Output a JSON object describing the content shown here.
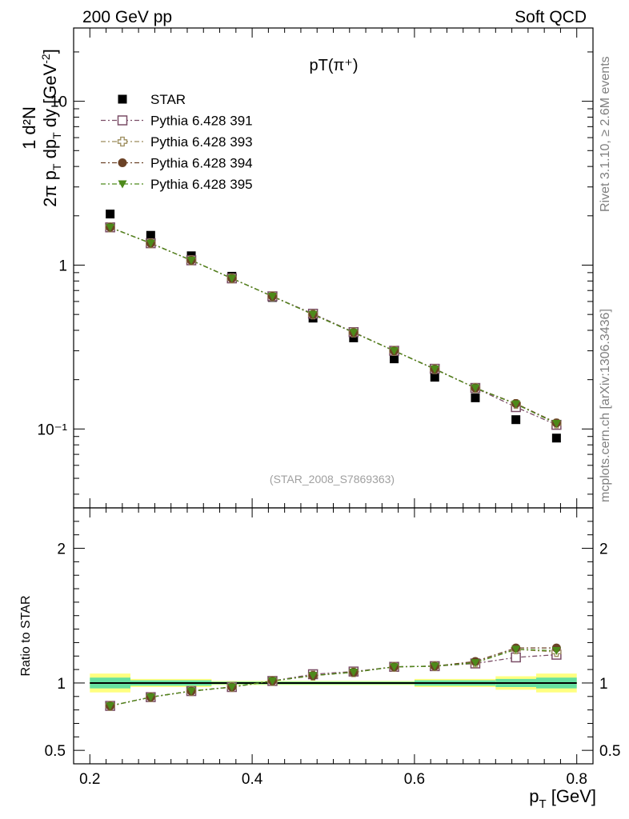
{
  "header": {
    "left": "200 GeV pp",
    "right": "Soft QCD"
  },
  "side_text": {
    "top": "Rivet 3.1.10, ≥ 2.6M events",
    "bottom": "mcplots.cern.ch [arXiv:1306.3436]"
  },
  "chart_data": [
    {
      "type": "scatter",
      "title": "pT(π⁺)",
      "annotation": "(STAR_2008_S7869363)",
      "xlabel": "p_T [GeV]",
      "ylabel": "1/(2π p_T) d²N/(dp_T dy) [GeV⁻²]",
      "yscale": "log",
      "xlim": [
        0.18,
        0.82
      ],
      "ylim": [
        0.033,
        28
      ],
      "y_tick_labels": [
        "10⁻¹",
        "1",
        "10"
      ],
      "legend_position": "top-left",
      "x": [
        0.225,
        0.275,
        0.325,
        0.375,
        0.425,
        0.475,
        0.525,
        0.575,
        0.625,
        0.675,
        0.725,
        0.775
      ],
      "series": [
        {
          "name": "STAR",
          "color": "#000000",
          "marker": "filled-square",
          "values": [
            2.05,
            1.52,
            1.14,
            0.855,
            0.635,
            0.475,
            0.36,
            0.268,
            0.207,
            0.155,
            0.114,
            0.088
          ]
        },
        {
          "name": "Pythia 6.428 391",
          "color": "#7a4d66",
          "marker": "open-square",
          "values": [
            1.7,
            1.36,
            1.07,
            0.83,
            0.645,
            0.505,
            0.39,
            0.3,
            0.233,
            0.178,
            0.136,
            0.106
          ]
        },
        {
          "name": "Pythia 6.428 393",
          "color": "#9c8c5c",
          "marker": "open-cross",
          "values": [
            1.7,
            1.36,
            1.07,
            0.83,
            0.645,
            0.5,
            0.388,
            0.3,
            0.232,
            0.178,
            0.142,
            0.108
          ]
        },
        {
          "name": "Pythia 6.428 394",
          "color": "#6b4226",
          "marker": "filled-circle",
          "values": [
            1.7,
            1.36,
            1.07,
            0.83,
            0.645,
            0.5,
            0.388,
            0.3,
            0.232,
            0.178,
            0.143,
            0.109
          ]
        },
        {
          "name": "Pythia 6.428 395",
          "color": "#4d8a1a",
          "marker": "filled-triangle-down",
          "values": [
            1.7,
            1.36,
            1.07,
            0.83,
            0.645,
            0.5,
            0.388,
            0.3,
            0.232,
            0.178,
            0.142,
            0.108
          ]
        }
      ]
    },
    {
      "type": "scatter",
      "ylabel": "Ratio to STAR",
      "xlabel": "p_T [GeV]",
      "xlim": [
        0.18,
        0.82
      ],
      "ylim": [
        0.4,
        2.3
      ],
      "y_ticks": [
        0.5,
        1,
        2
      ],
      "x_ticks": [
        0.2,
        0.4,
        0.6,
        0.8
      ],
      "reference_line": 1,
      "x": [
        0.225,
        0.275,
        0.325,
        0.375,
        0.425,
        0.475,
        0.525,
        0.575,
        0.625,
        0.675,
        0.725,
        0.775
      ],
      "uncertainty_bands": [
        {
          "x_range": [
            0.2,
            0.25
          ],
          "inner": [
            0.96,
            1.04
          ],
          "outer": [
            0.93,
            1.07
          ]
        },
        {
          "x_range": [
            0.25,
            0.35
          ],
          "inner": [
            0.98,
            1.02
          ],
          "outer": [
            0.97,
            1.03
          ]
        },
        {
          "x_range": [
            0.35,
            0.6
          ],
          "inner": [
            0.99,
            1.01
          ],
          "outer": [
            0.985,
            1.015
          ]
        },
        {
          "x_range": [
            0.6,
            0.7
          ],
          "inner": [
            0.98,
            1.02
          ],
          "outer": [
            0.97,
            1.03
          ]
        },
        {
          "x_range": [
            0.7,
            0.75
          ],
          "inner": [
            0.97,
            1.03
          ],
          "outer": [
            0.95,
            1.05
          ]
        },
        {
          "x_range": [
            0.75,
            0.8
          ],
          "inner": [
            0.96,
            1.04
          ],
          "outer": [
            0.93,
            1.07
          ]
        }
      ],
      "series": [
        {
          "name": "Pythia 6.428 391",
          "color": "#7a4d66",
          "marker": "open-square",
          "values": [
            0.83,
            0.895,
            0.94,
            0.97,
            1.015,
            1.065,
            1.085,
            1.12,
            1.125,
            1.145,
            1.19,
            1.21
          ]
        },
        {
          "name": "Pythia 6.428 393",
          "color": "#9c8c5c",
          "marker": "open-cross",
          "values": [
            0.83,
            0.895,
            0.94,
            0.97,
            1.015,
            1.055,
            1.08,
            1.12,
            1.125,
            1.15,
            1.25,
            1.23
          ]
        },
        {
          "name": "Pythia 6.428 394",
          "color": "#6b4226",
          "marker": "filled-circle",
          "values": [
            0.83,
            0.895,
            0.94,
            0.97,
            1.015,
            1.055,
            1.08,
            1.12,
            1.125,
            1.16,
            1.26,
            1.26
          ]
        },
        {
          "name": "Pythia 6.428 395",
          "color": "#4d8a1a",
          "marker": "filled-triangle-down",
          "values": [
            0.83,
            0.895,
            0.94,
            0.97,
            1.015,
            1.055,
            1.08,
            1.12,
            1.125,
            1.15,
            1.25,
            1.24
          ]
        }
      ]
    }
  ]
}
